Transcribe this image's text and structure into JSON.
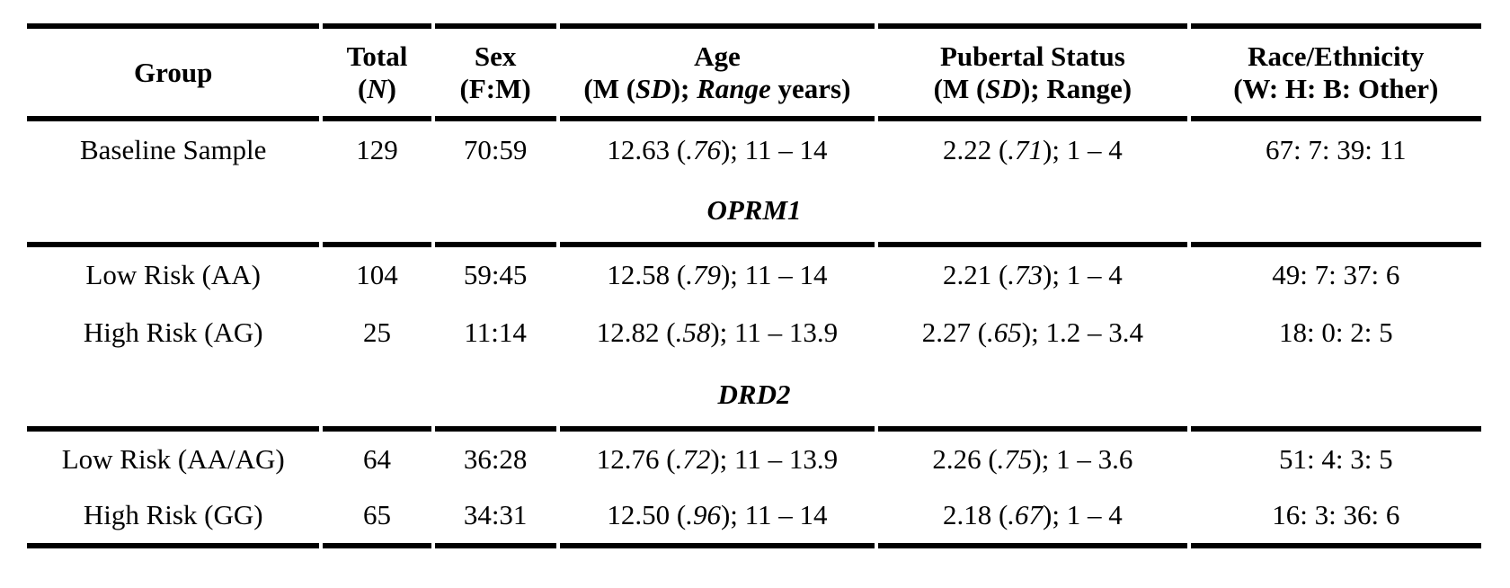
{
  "page": {
    "background_color": "#ffffff",
    "text_color": "#000000",
    "rule_color": "#000000"
  },
  "header": {
    "group": "Group",
    "total": {
      "line1": "Total",
      "open": "(",
      "n": "N",
      "close": ")"
    },
    "sex": {
      "line1": "Sex",
      "line2": "(F:M)"
    },
    "age": {
      "line1": "Age",
      "pre": "(M (",
      "sd": "SD",
      "mid": "); ",
      "range": "Range",
      "post": " years)"
    },
    "pubertal": {
      "line1": "Pubertal Status",
      "pre": "(M (",
      "sd": "SD",
      "post": "); Range)"
    },
    "race": {
      "line1": "Race/Ethnicity",
      "line2": "(W: H: B: Other)"
    }
  },
  "sections": [
    {
      "label": "OPRM1"
    },
    {
      "label": "DRD2"
    }
  ],
  "rows": [
    {
      "group": "Baseline Sample",
      "total": "129",
      "sex": "70:59",
      "age": {
        "pre": "12.63 (",
        "sd": ".76",
        "post": "); 11 – 14"
      },
      "pubertal": {
        "pre": "2.22 (",
        "sd": ".71",
        "post": "); 1 – 4"
      },
      "race": "67: 7: 39: 11"
    },
    {
      "group": "Low Risk (AA)",
      "total": "104",
      "sex": "59:45",
      "age": {
        "pre": "12.58 (",
        "sd": ".79",
        "post": "); 11 – 14"
      },
      "pubertal": {
        "pre": "2.21 (",
        "sd": ".73",
        "post": "); 1 – 4"
      },
      "race": "49: 7: 37: 6"
    },
    {
      "group": "High Risk (AG)",
      "total": "25",
      "sex": "11:14",
      "age": {
        "pre": "12.82 (",
        "sd": ".58",
        "post": "); 11 – 13.9"
      },
      "pubertal": {
        "pre": "2.27 (",
        "sd": ".65",
        "post": "); 1.2 – 3.4"
      },
      "race": "18: 0: 2: 5"
    },
    {
      "group": "Low Risk (AA/AG)",
      "total": "64",
      "sex": "36:28",
      "age": {
        "pre": "12.76 (",
        "sd": ".72",
        "post": "); 11 – 13.9"
      },
      "pubertal": {
        "pre": "2.26 (",
        "sd": ".75",
        "post": "); 1 – 3.6"
      },
      "race": "51: 4: 3: 5"
    },
    {
      "group": "High Risk (GG)",
      "total": "65",
      "sex": "34:31",
      "age": {
        "pre": "12.50 (",
        "sd": ".96",
        "post": "); 11 – 14"
      },
      "pubertal": {
        "pre": "2.18 (",
        "sd": ".67",
        "post": "); 1 – 4"
      },
      "race": "16: 3: 36: 6"
    }
  ]
}
